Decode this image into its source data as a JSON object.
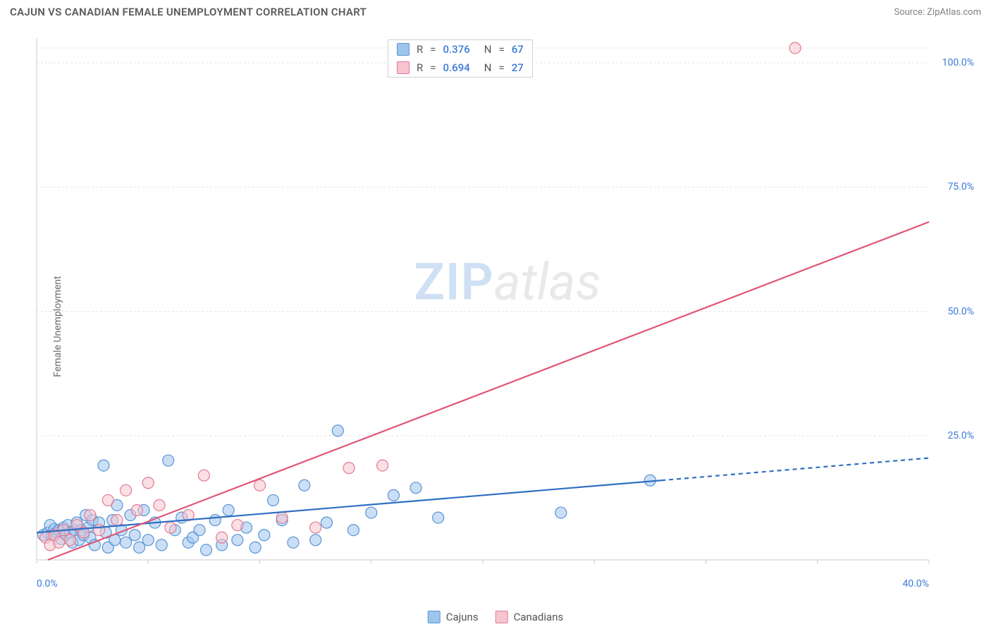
{
  "title": "CAJUN VS CANADIAN FEMALE UNEMPLOYMENT CORRELATION CHART",
  "source": "Source: ZipAtlas.com",
  "ylabel": "Female Unemployment",
  "watermark": {
    "zip": "ZIP",
    "atlas": "atlas"
  },
  "chart": {
    "type": "scatter-with-regression",
    "background_color": "#ffffff",
    "grid_color": "#e4e4e4",
    "axis_color": "#cccccc",
    "xlim": [
      0,
      40
    ],
    "ylim": [
      0,
      105
    ],
    "xtick_step": 5,
    "xtick_labels": {
      "0": "0.0%",
      "40": "40.0%"
    },
    "ytick_labels": {
      "25": "25.0%",
      "50": "50.0%",
      "75": "75.0%",
      "100": "100.0%"
    },
    "point_radius": 8,
    "point_stroke_width": 1.2,
    "series": [
      {
        "name": "Cajuns",
        "fill_color": "#9ec5ec",
        "stroke_color": "#5a94d6",
        "fill_opacity": 0.55,
        "line_color": "#2f6fc4",
        "line_width": 2.2,
        "r_value": "0.376",
        "n_value": "67",
        "regression": {
          "x1": 0,
          "y1": 5.5,
          "x2": 28,
          "y2": 16.0,
          "dash_x1": 28,
          "dash_y1": 16.0,
          "dash_x2": 40,
          "dash_y2": 20.5
        },
        "points": [
          [
            0.3,
            5.0
          ],
          [
            0.5,
            5.5
          ],
          [
            0.6,
            7.0
          ],
          [
            0.7,
            5.0
          ],
          [
            0.8,
            6.2
          ],
          [
            0.9,
            5.5
          ],
          [
            1.0,
            6.0
          ],
          [
            1.1,
            4.2
          ],
          [
            1.2,
            6.5
          ],
          [
            1.3,
            5.0
          ],
          [
            1.4,
            7.0
          ],
          [
            1.5,
            5.5
          ],
          [
            1.6,
            3.5
          ],
          [
            1.7,
            6.0
          ],
          [
            1.8,
            7.5
          ],
          [
            1.9,
            4.0
          ],
          [
            2.0,
            6.0
          ],
          [
            2.1,
            5.0
          ],
          [
            2.2,
            9.0
          ],
          [
            2.3,
            6.5
          ],
          [
            2.4,
            4.5
          ],
          [
            2.5,
            8.0
          ],
          [
            2.6,
            3.0
          ],
          [
            2.8,
            7.5
          ],
          [
            3.0,
            19.0
          ],
          [
            3.1,
            5.5
          ],
          [
            3.2,
            2.5
          ],
          [
            3.4,
            8.0
          ],
          [
            3.5,
            4.0
          ],
          [
            3.6,
            11.0
          ],
          [
            3.8,
            6.0
          ],
          [
            4.0,
            3.5
          ],
          [
            4.2,
            9.0
          ],
          [
            4.4,
            5.0
          ],
          [
            4.6,
            2.5
          ],
          [
            4.8,
            10.0
          ],
          [
            5.0,
            4.0
          ],
          [
            5.3,
            7.5
          ],
          [
            5.6,
            3.0
          ],
          [
            5.9,
            20.0
          ],
          [
            6.2,
            6.0
          ],
          [
            6.5,
            8.5
          ],
          [
            6.8,
            3.5
          ],
          [
            7.0,
            4.5
          ],
          [
            7.3,
            6.0
          ],
          [
            7.6,
            2.0
          ],
          [
            8.0,
            8.0
          ],
          [
            8.3,
            3.0
          ],
          [
            8.6,
            10.0
          ],
          [
            9.0,
            4.0
          ],
          [
            9.4,
            6.5
          ],
          [
            9.8,
            2.5
          ],
          [
            10.2,
            5.0
          ],
          [
            10.6,
            12.0
          ],
          [
            11.0,
            8.0
          ],
          [
            11.5,
            3.5
          ],
          [
            12.0,
            15.0
          ],
          [
            12.5,
            4.0
          ],
          [
            13.0,
            7.5
          ],
          [
            13.5,
            26.0
          ],
          [
            14.2,
            6.0
          ],
          [
            15.0,
            9.5
          ],
          [
            16.0,
            13.0
          ],
          [
            17.0,
            14.5
          ],
          [
            18.0,
            8.5
          ],
          [
            23.5,
            9.5
          ],
          [
            27.5,
            16.0
          ]
        ]
      },
      {
        "name": "Canadians",
        "fill_color": "#f6c4cf",
        "stroke_color": "#e47a92",
        "fill_opacity": 0.55,
        "line_color": "#e15575",
        "line_width": 2.2,
        "r_value": "0.694",
        "n_value": "27",
        "regression": {
          "x1": 0.5,
          "y1": 0,
          "x2": 40,
          "y2": 68
        },
        "points": [
          [
            0.4,
            4.5
          ],
          [
            0.6,
            3.0
          ],
          [
            0.8,
            5.0
          ],
          [
            1.0,
            3.5
          ],
          [
            1.2,
            6.0
          ],
          [
            1.5,
            4.0
          ],
          [
            1.8,
            7.0
          ],
          [
            2.1,
            5.5
          ],
          [
            2.4,
            9.0
          ],
          [
            2.8,
            6.0
          ],
          [
            3.2,
            12.0
          ],
          [
            3.6,
            8.0
          ],
          [
            4.0,
            14.0
          ],
          [
            4.5,
            10.0
          ],
          [
            5.0,
            15.5
          ],
          [
            5.5,
            11.0
          ],
          [
            6.0,
            6.5
          ],
          [
            6.8,
            9.0
          ],
          [
            7.5,
            17.0
          ],
          [
            8.3,
            4.5
          ],
          [
            9.0,
            7.0
          ],
          [
            10.0,
            15.0
          ],
          [
            11.0,
            8.5
          ],
          [
            12.5,
            6.5
          ],
          [
            14.0,
            18.5
          ],
          [
            15.5,
            19.0
          ],
          [
            34.0,
            103.0
          ]
        ]
      }
    ]
  },
  "stats_legend": {
    "r_label": "R",
    "n_label": "N",
    "eq": "="
  },
  "bottom_legend": {
    "items": [
      "Cajuns",
      "Canadians"
    ]
  }
}
